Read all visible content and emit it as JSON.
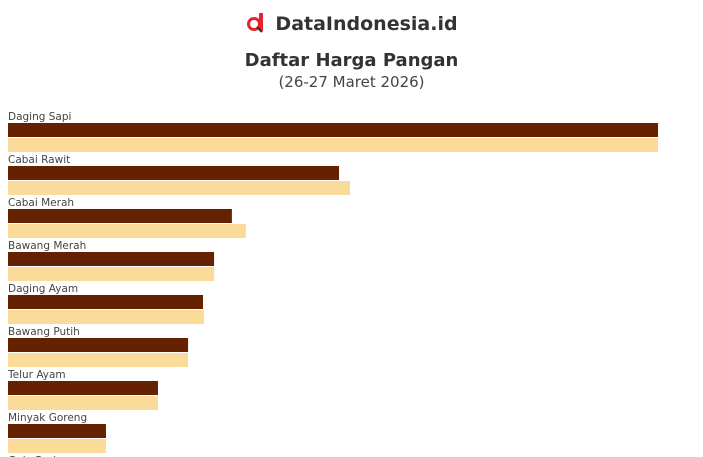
{
  "brand": {
    "name": "DataIndonesia.id",
    "colors": {
      "red": "#e3262e",
      "dark": "#333333"
    }
  },
  "chart_data": {
    "type": "bar",
    "orientation": "horizontal",
    "title": "Daftar Harga Pangan",
    "subtitle": "(26-27 Maret 2026)",
    "categories": [
      "Daging Sapi",
      "Cabai Rawit",
      "Cabai Merah",
      "Bawang Merah",
      "Daging Ayam",
      "Bawang Putih",
      "Telur Ayam",
      "Minyak Goreng",
      "Gula Pasir"
    ],
    "series": [
      {
        "color": "#662200",
        "values": [
          135000,
          68750,
          46500,
          42800,
          40500,
          37400,
          31150,
          20350,
          null
        ]
      },
      {
        "color": "#fadb9a",
        "values": [
          135000,
          71000,
          49400,
          42800,
          40700,
          37400,
          31150,
          20350,
          null
        ]
      }
    ],
    "grid": false,
    "axis_labels_shown": false,
    "legend": "none"
  }
}
